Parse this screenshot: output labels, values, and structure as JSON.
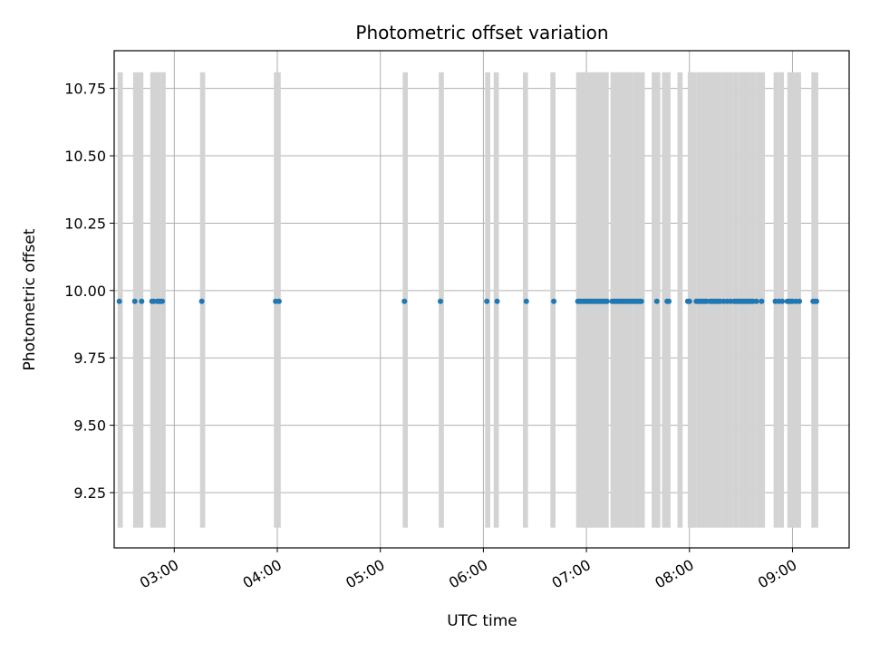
{
  "chart_data": {
    "type": "scatter",
    "title": "Photometric offset variation",
    "xlabel": "UTC time",
    "ylabel": "Photometric offset",
    "x_axis_kind": "time",
    "xlim": [
      "02:25",
      "09:33"
    ],
    "ylim": [
      9.045,
      10.89
    ],
    "x_ticks": [
      "03:00",
      "04:00",
      "05:00",
      "06:00",
      "07:00",
      "08:00",
      "09:00"
    ],
    "y_ticks": [
      9.25,
      9.5,
      9.75,
      10.0,
      10.25,
      10.5,
      10.75
    ],
    "y_tick_labels": [
      "9.25",
      "9.50",
      "9.75",
      "10.00",
      "10.25",
      "10.50",
      "10.75"
    ],
    "grid": true,
    "colors": {
      "points": "#1f77b4",
      "bands": "#d3d3d3",
      "grid": "#b0b0b0"
    },
    "band_range": [
      9.12,
      10.81
    ],
    "bands": [
      [
        "02:27",
        "02:30"
      ],
      [
        "02:36",
        "02:39"
      ],
      [
        "02:39",
        "02:42"
      ],
      [
        "02:46",
        "02:49"
      ],
      [
        "02:49",
        "02:52"
      ],
      [
        "02:52",
        "02:55"
      ],
      [
        "03:15",
        "03:18"
      ],
      [
        "03:58",
        "04:02"
      ],
      [
        "05:13",
        "05:16"
      ],
      [
        "05:34",
        "05:37"
      ],
      [
        "06:01",
        "06:04"
      ],
      [
        "06:06",
        "06:09"
      ],
      [
        "06:23",
        "06:26"
      ],
      [
        "06:39",
        "06:42"
      ],
      [
        "06:54",
        "07:13"
      ],
      [
        "07:14",
        "07:27"
      ],
      [
        "07:27",
        "07:34"
      ],
      [
        "07:38",
        "07:43"
      ],
      [
        "07:44",
        "07:49"
      ],
      [
        "07:53",
        "07:56"
      ],
      [
        "07:59",
        "08:04"
      ],
      [
        "08:04",
        "08:12"
      ],
      [
        "08:12",
        "08:19"
      ],
      [
        "08:19",
        "08:25"
      ],
      [
        "08:25",
        "08:29"
      ],
      [
        "08:29",
        "08:35"
      ],
      [
        "08:35",
        "08:39"
      ],
      [
        "08:39",
        "08:44"
      ],
      [
        "08:49",
        "08:52"
      ],
      [
        "08:52",
        "08:55"
      ],
      [
        "08:57",
        "09:05"
      ],
      [
        "09:11",
        "09:15"
      ]
    ],
    "series": [
      {
        "y": 9.96,
        "x": [
          "02:28",
          "02:37",
          "02:41",
          "02:47",
          "02:48",
          "02:50",
          "02:51",
          "02:52",
          "02:53",
          "03:16",
          "03:59",
          "04:01",
          "05:14",
          "05:35",
          "06:02",
          "06:08",
          "06:25",
          "06:41",
          "06:55",
          "06:56",
          "06:57",
          "06:58",
          "06:59",
          "07:00",
          "07:01",
          "07:02",
          "07:03",
          "07:04",
          "07:05",
          "07:06",
          "07:07",
          "07:08",
          "07:09",
          "07:10",
          "07:11",
          "07:12",
          "07:15",
          "07:16",
          "07:17",
          "07:18",
          "07:19",
          "07:20",
          "07:21",
          "07:22",
          "07:23",
          "07:24",
          "07:25",
          "07:26",
          "07:27",
          "07:28",
          "07:29",
          "07:30",
          "07:31",
          "07:32",
          "07:41",
          "07:47",
          "07:48",
          "07:59",
          "08:00",
          "08:04",
          "08:05",
          "08:06",
          "08:07",
          "08:08",
          "08:09",
          "08:10",
          "08:12",
          "08:13",
          "08:14",
          "08:15",
          "08:16",
          "08:17",
          "08:18",
          "08:20",
          "08:22",
          "08:24",
          "08:26",
          "08:27",
          "08:28",
          "08:29",
          "08:30",
          "08:31",
          "08:32",
          "08:33",
          "08:34",
          "08:35",
          "08:36",
          "08:37",
          "08:39",
          "08:42",
          "08:50",
          "08:52",
          "08:54",
          "08:57",
          "08:58",
          "08:59",
          "09:00",
          "09:02",
          "09:04",
          "09:12",
          "09:13",
          "09:14"
        ]
      }
    ]
  }
}
